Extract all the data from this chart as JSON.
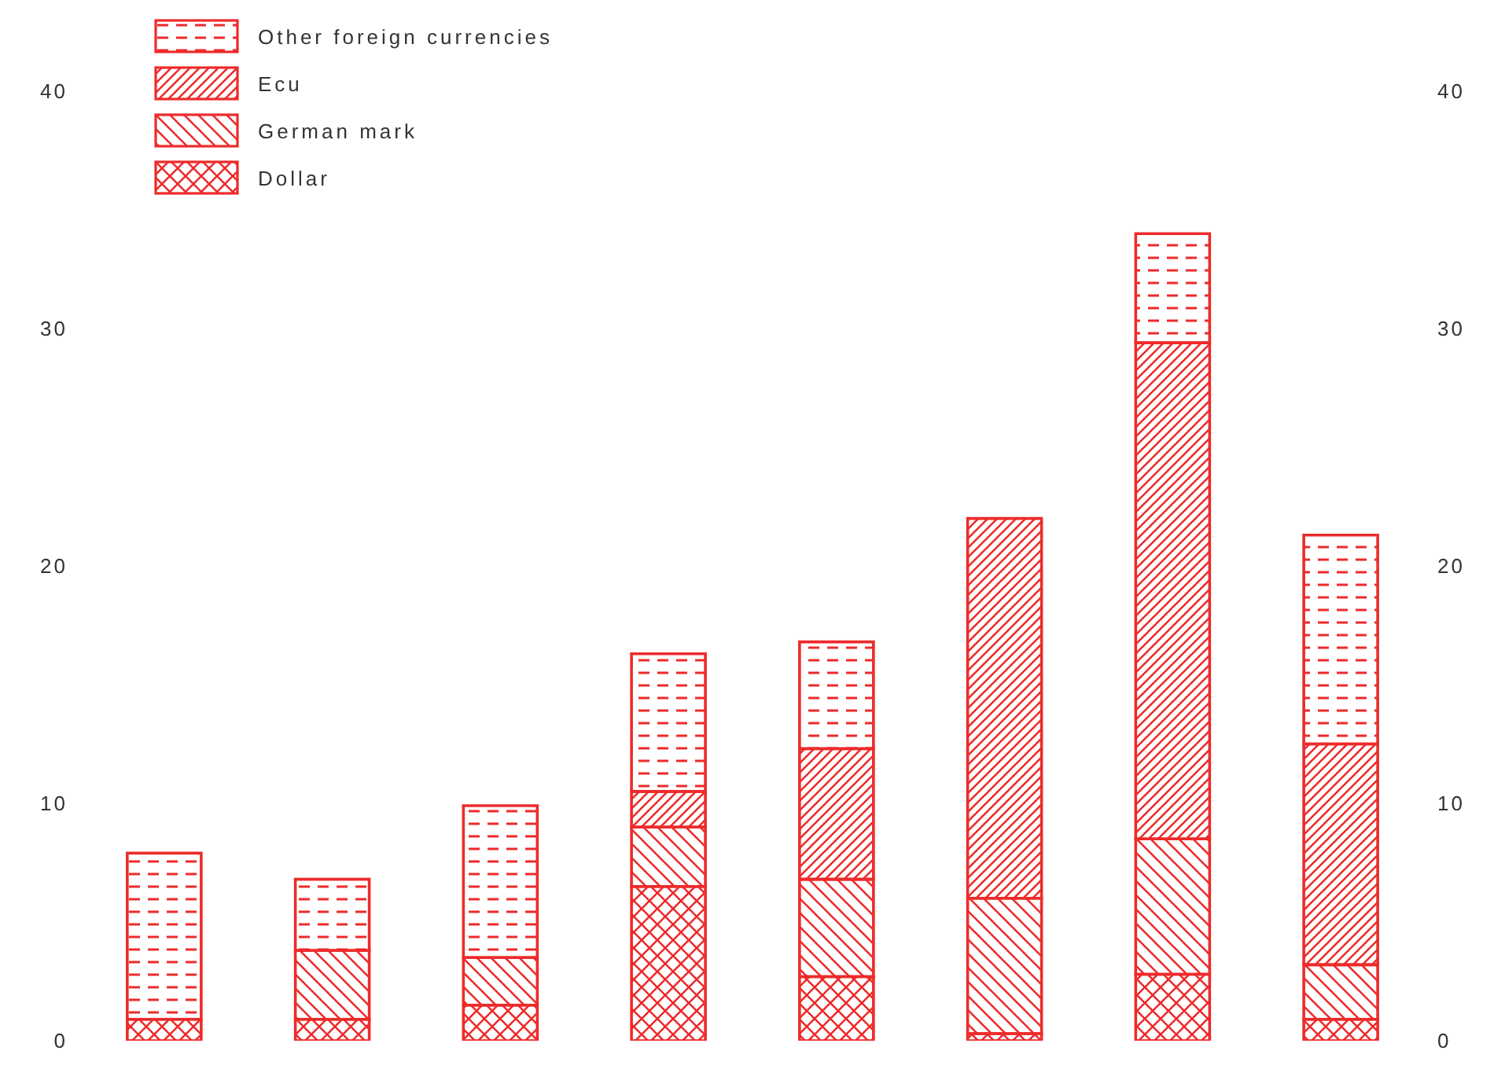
{
  "chart_data": {
    "type": "bar",
    "stacked": true,
    "categories": [
      null,
      null,
      null,
      null,
      null,
      null,
      null,
      null
    ],
    "series": [
      {
        "name": "Dollar",
        "color": "#ee2a2a",
        "values": [
          0.9,
          0.9,
          1.5,
          6.5,
          2.7,
          0.3,
          2.8,
          0.9
        ]
      },
      {
        "name": "German mark",
        "color": "#ee2a2a",
        "values": [
          null,
          2.9,
          2.0,
          2.5,
          4.1,
          5.7,
          5.7,
          2.3
        ]
      },
      {
        "name": "Ecu",
        "color": "#ee2a2a",
        "values": [
          0,
          0,
          0,
          1.5,
          5.5,
          16.0,
          20.9,
          9.3
        ]
      },
      {
        "name": "Other foreign currencies",
        "color": "#ee2a2a",
        "values": [
          7.0,
          3.0,
          6.4,
          5.8,
          4.5,
          0,
          4.6,
          8.8
        ]
      }
    ],
    "ylim": [
      0,
      40
    ],
    "yticks": [
      0,
      10,
      20,
      30,
      40
    ],
    "y2lim": [
      0,
      40
    ],
    "y2ticks": [
      0,
      10,
      20,
      30,
      40
    ],
    "tick_labels": "y",
    "legend": "top left"
  }
}
